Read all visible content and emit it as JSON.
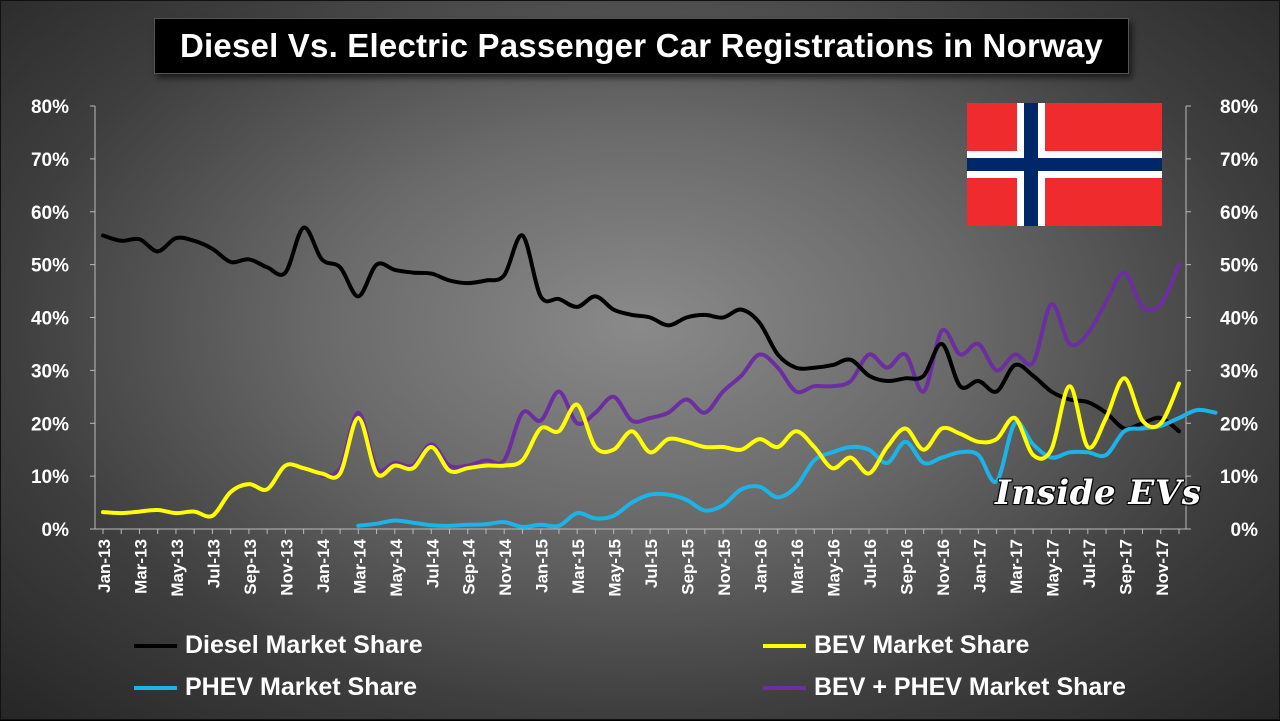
{
  "title": "Diesel Vs. Electric Passenger Car Registrations in Norway",
  "watermark": "Inside EVs",
  "flag": "norway-flag",
  "colors": {
    "diesel": "#000000",
    "bev": "#ffff00",
    "phev": "#1cb4e8",
    "combined": "#6b2fa0"
  },
  "chart_data": {
    "type": "line",
    "title": "Diesel Vs. Electric Passenger Car Registrations in Norway",
    "ylim": [
      0,
      80
    ],
    "y_ticks": [
      "0%",
      "10%",
      "20%",
      "30%",
      "40%",
      "50%",
      "60%",
      "70%",
      "80%"
    ],
    "y_tick_values": [
      0,
      10,
      20,
      30,
      40,
      50,
      60,
      70,
      80
    ],
    "x_tick_labels": [
      "Jan-13",
      "Mar-13",
      "May-13",
      "Jul-13",
      "Sep-13",
      "Nov-13",
      "Jan-14",
      "Mar-14",
      "May-14",
      "Jul-14",
      "Sep-14",
      "Nov-14",
      "Jan-15",
      "Mar-15",
      "May-15",
      "Jul-15",
      "Sep-15",
      "Nov-15",
      "Jan-16",
      "Mar-16",
      "May-16",
      "Jul-16",
      "Sep-16",
      "Nov-16",
      "Jan-17",
      "Mar-17",
      "May-17",
      "Jul-17",
      "Sep-17",
      "Nov-17"
    ],
    "x_tick_index": [
      0,
      2,
      4,
      6,
      8,
      10,
      12,
      14,
      16,
      18,
      20,
      22,
      24,
      26,
      28,
      30,
      32,
      34,
      36,
      38,
      40,
      42,
      44,
      46,
      48,
      50,
      52,
      54,
      56,
      58
    ],
    "n_months": 60,
    "series": [
      {
        "name": "Diesel Market Share",
        "key": "diesel",
        "start": 0,
        "values": [
          55.5,
          54.5,
          54.8,
          52.5,
          55,
          54.5,
          53,
          50.5,
          51,
          49.5,
          48.5,
          57,
          51,
          49.5,
          44,
          50,
          49,
          48.5,
          48.3,
          47,
          46.5,
          47,
          48,
          55.5,
          44,
          43.5,
          42,
          44,
          41.5,
          40.5,
          40,
          38.5,
          40,
          40.5,
          40,
          41.5,
          39,
          33,
          30.5,
          30.5,
          31,
          32,
          29,
          28,
          28.5,
          29,
          35,
          27,
          28,
          26,
          31,
          29,
          26,
          24.5,
          24,
          22,
          19,
          20,
          21,
          18.5
        ]
      },
      {
        "name": "BEV Market Share",
        "key": "bev",
        "start": 0,
        "values": [
          3.2,
          3.0,
          3.3,
          3.6,
          3.0,
          3.3,
          2.5,
          7.0,
          8.5,
          7.5,
          12.0,
          11.5,
          10.5,
          10.5,
          21.0,
          10.5,
          12.0,
          11.5,
          15.5,
          11.0,
          11.5,
          12.0,
          12.0,
          13.0,
          19.0,
          18.5,
          23.5,
          15.5,
          15.0,
          18.5,
          14.5,
          17.0,
          16.5,
          15.5,
          15.5,
          15.0,
          17.0,
          15.5,
          18.5,
          15.5,
          11.5,
          13.5,
          10.5,
          15.5,
          19.0,
          15.0,
          19.0,
          18.0,
          16.5,
          17.0,
          21.0,
          14.0,
          15.0,
          27.0,
          15.5,
          21.0,
          28.5,
          20.5,
          20.0,
          27.5
        ]
      },
      {
        "name": "PHEV Market Share",
        "key": "phev",
        "start": 14,
        "values": [
          0.6,
          1.0,
          1.6,
          1.2,
          0.7,
          0.6,
          0.8,
          0.9,
          1.3,
          0.4,
          0.8,
          0.6,
          3.0,
          2.0,
          2.5,
          5.0,
          6.5,
          6.5,
          5.5,
          3.5,
          4.5,
          7.5,
          8.0,
          6.0,
          8.0,
          13.0,
          14.5,
          15.5,
          15.0,
          12.5,
          16.5,
          12.5,
          13.5,
          14.5,
          14.0,
          9.0,
          20.0,
          16.0,
          13.5,
          14.5,
          14.5,
          14.0,
          18.5,
          19.0,
          19.5,
          21.0,
          22.5,
          22.0
        ]
      },
      {
        "name": "BEV + PHEV Market Share",
        "key": "combined",
        "start": 12,
        "values": [
          10.0,
          11.5,
          22.0,
          11.5,
          12.5,
          12.0,
          16.0,
          12.0,
          12.0,
          13.0,
          13.0,
          22.0,
          20.5,
          26.0,
          20.0,
          22.0,
          25.0,
          20.5,
          21.0,
          22.0,
          24.5,
          22.0,
          26.0,
          29.0,
          33.0,
          30.5,
          26.0,
          27.0,
          27.0,
          28.0,
          33.0,
          30.5,
          33.0,
          26.0,
          37.5,
          33.0,
          35.0,
          30.0,
          33.0,
          31.5,
          42.5,
          35.0,
          37.0,
          43.0,
          48.5,
          42.0,
          42.5,
          50.0
        ]
      }
    ],
    "legend_position": "bottom"
  }
}
